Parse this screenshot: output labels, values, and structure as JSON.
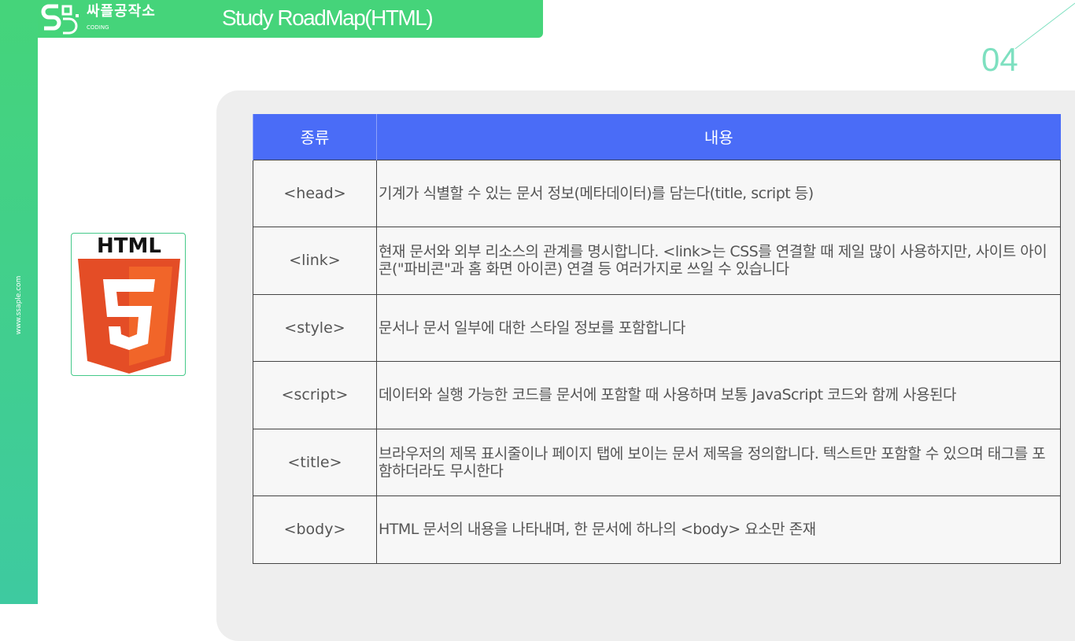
{
  "sidebar": {
    "url": "www.ssaple.com"
  },
  "header": {
    "brand": "싸플공작소",
    "brand_sub": "CODING",
    "title": "Study RoadMap(HTML)"
  },
  "page_number": "04",
  "colors": {
    "green": "#45d47a",
    "blue": "#4a6cf7",
    "html5_orange": "#e44d26"
  },
  "logo": {
    "text": "HTML",
    "icon": "html5-logo-icon"
  },
  "table": {
    "headers": [
      "종류",
      "내용"
    ],
    "rows": [
      {
        "tag": "<head>",
        "desc": "기계가 식별할 수 있는 문서 정보(메타데이터)를 담는다(title, script 등)"
      },
      {
        "tag": "<link>",
        "desc": "현재 문서와 외부 리소스의 관계를 명시합니다. <link>는 CSS를 연결할 때 제일 많이 사용하지만, 사이트 아이콘(\"파비콘\"과 홈 화면 아이콘) 연결 등 여러가지로 쓰일 수 있습니다"
      },
      {
        "tag": "<style>",
        "desc": "문서나 문서 일부에 대한 스타일 정보를 포함합니다"
      },
      {
        "tag": "<script>",
        "desc": "데이터와 실행 가능한 코드를 문서에 포함할 때 사용하며 보통 JavaScript 코드와 함께 사용된다"
      },
      {
        "tag": "<title>",
        "desc": "브라우저의 제목 표시줄이나 페이지 탭에 보이는 문서 제목을 정의합니다. 텍스트만 포함할 수 있으며 태그를 포함하더라도 무시한다"
      },
      {
        "tag": "<body>",
        "desc": "HTML 문서의 내용을 나타내며, 한 문서에 하나의 <body> 요소만 존재"
      }
    ]
  }
}
